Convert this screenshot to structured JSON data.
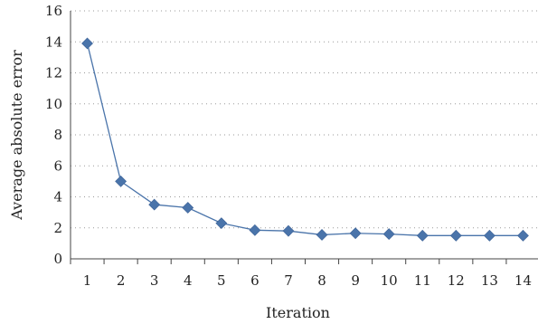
{
  "chart_data": {
    "type": "line",
    "title": "",
    "xlabel": "Iteration",
    "ylabel": "Average absolute error",
    "x": [
      1,
      2,
      3,
      4,
      5,
      6,
      7,
      8,
      9,
      10,
      11,
      12,
      13,
      14
    ],
    "series": [
      {
        "values": [
          13.9,
          5.0,
          3.5,
          3.3,
          2.3,
          1.85,
          1.8,
          1.55,
          1.65,
          1.6,
          1.5,
          1.5,
          1.5,
          1.5
        ],
        "color": "#4a74aa",
        "marker": "diamond"
      }
    ],
    "ylim": [
      0,
      16
    ],
    "yticks": [
      0,
      2,
      4,
      6,
      8,
      10,
      12,
      14,
      16
    ],
    "xticks": [
      "1",
      "2",
      "3",
      "4",
      "5",
      "6",
      "7",
      "8",
      "9",
      "10",
      "11",
      "12",
      "13",
      "14"
    ],
    "grid": "horizontal-dotted",
    "legend": "none"
  }
}
